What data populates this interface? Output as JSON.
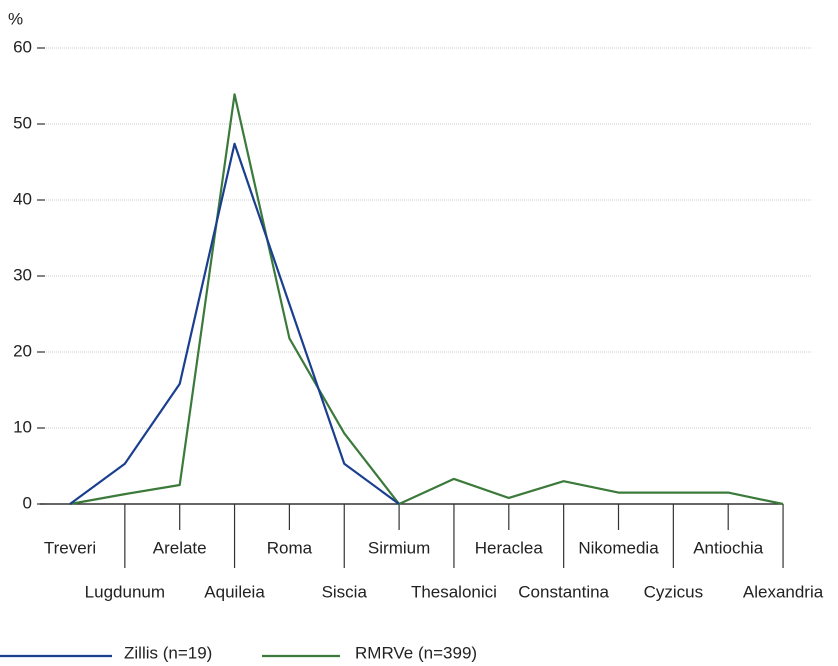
{
  "chart_data": {
    "type": "line",
    "y_label": "%",
    "categories": [
      "Treveri",
      "Lugdunum",
      "Arelate",
      "Aquileia",
      "Roma",
      "Siscia",
      "Sirmium",
      "Thesalonici",
      "Heraclea",
      "Constantina",
      "Nikomedia",
      "Cyzicus",
      "Antiochia",
      "Alexandria"
    ],
    "series": [
      {
        "name": "Zillis (n=19)",
        "color": "#1b3f8f",
        "values": [
          0,
          5.3,
          15.8,
          47.4,
          26.3,
          5.3,
          0,
          null,
          null,
          null,
          null,
          null,
          null,
          null
        ]
      },
      {
        "name": "RMRVe (n=399)",
        "color": "#3b7a3b",
        "values": [
          0,
          1.3,
          2.5,
          53.9,
          21.8,
          9.3,
          0,
          3.3,
          0.8,
          3.0,
          1.5,
          1.5,
          1.5,
          0
        ]
      }
    ],
    "ylim": [
      0,
      60
    ],
    "yticks": [
      0,
      10,
      20,
      30,
      40,
      50,
      60
    ],
    "grid": true
  }
}
